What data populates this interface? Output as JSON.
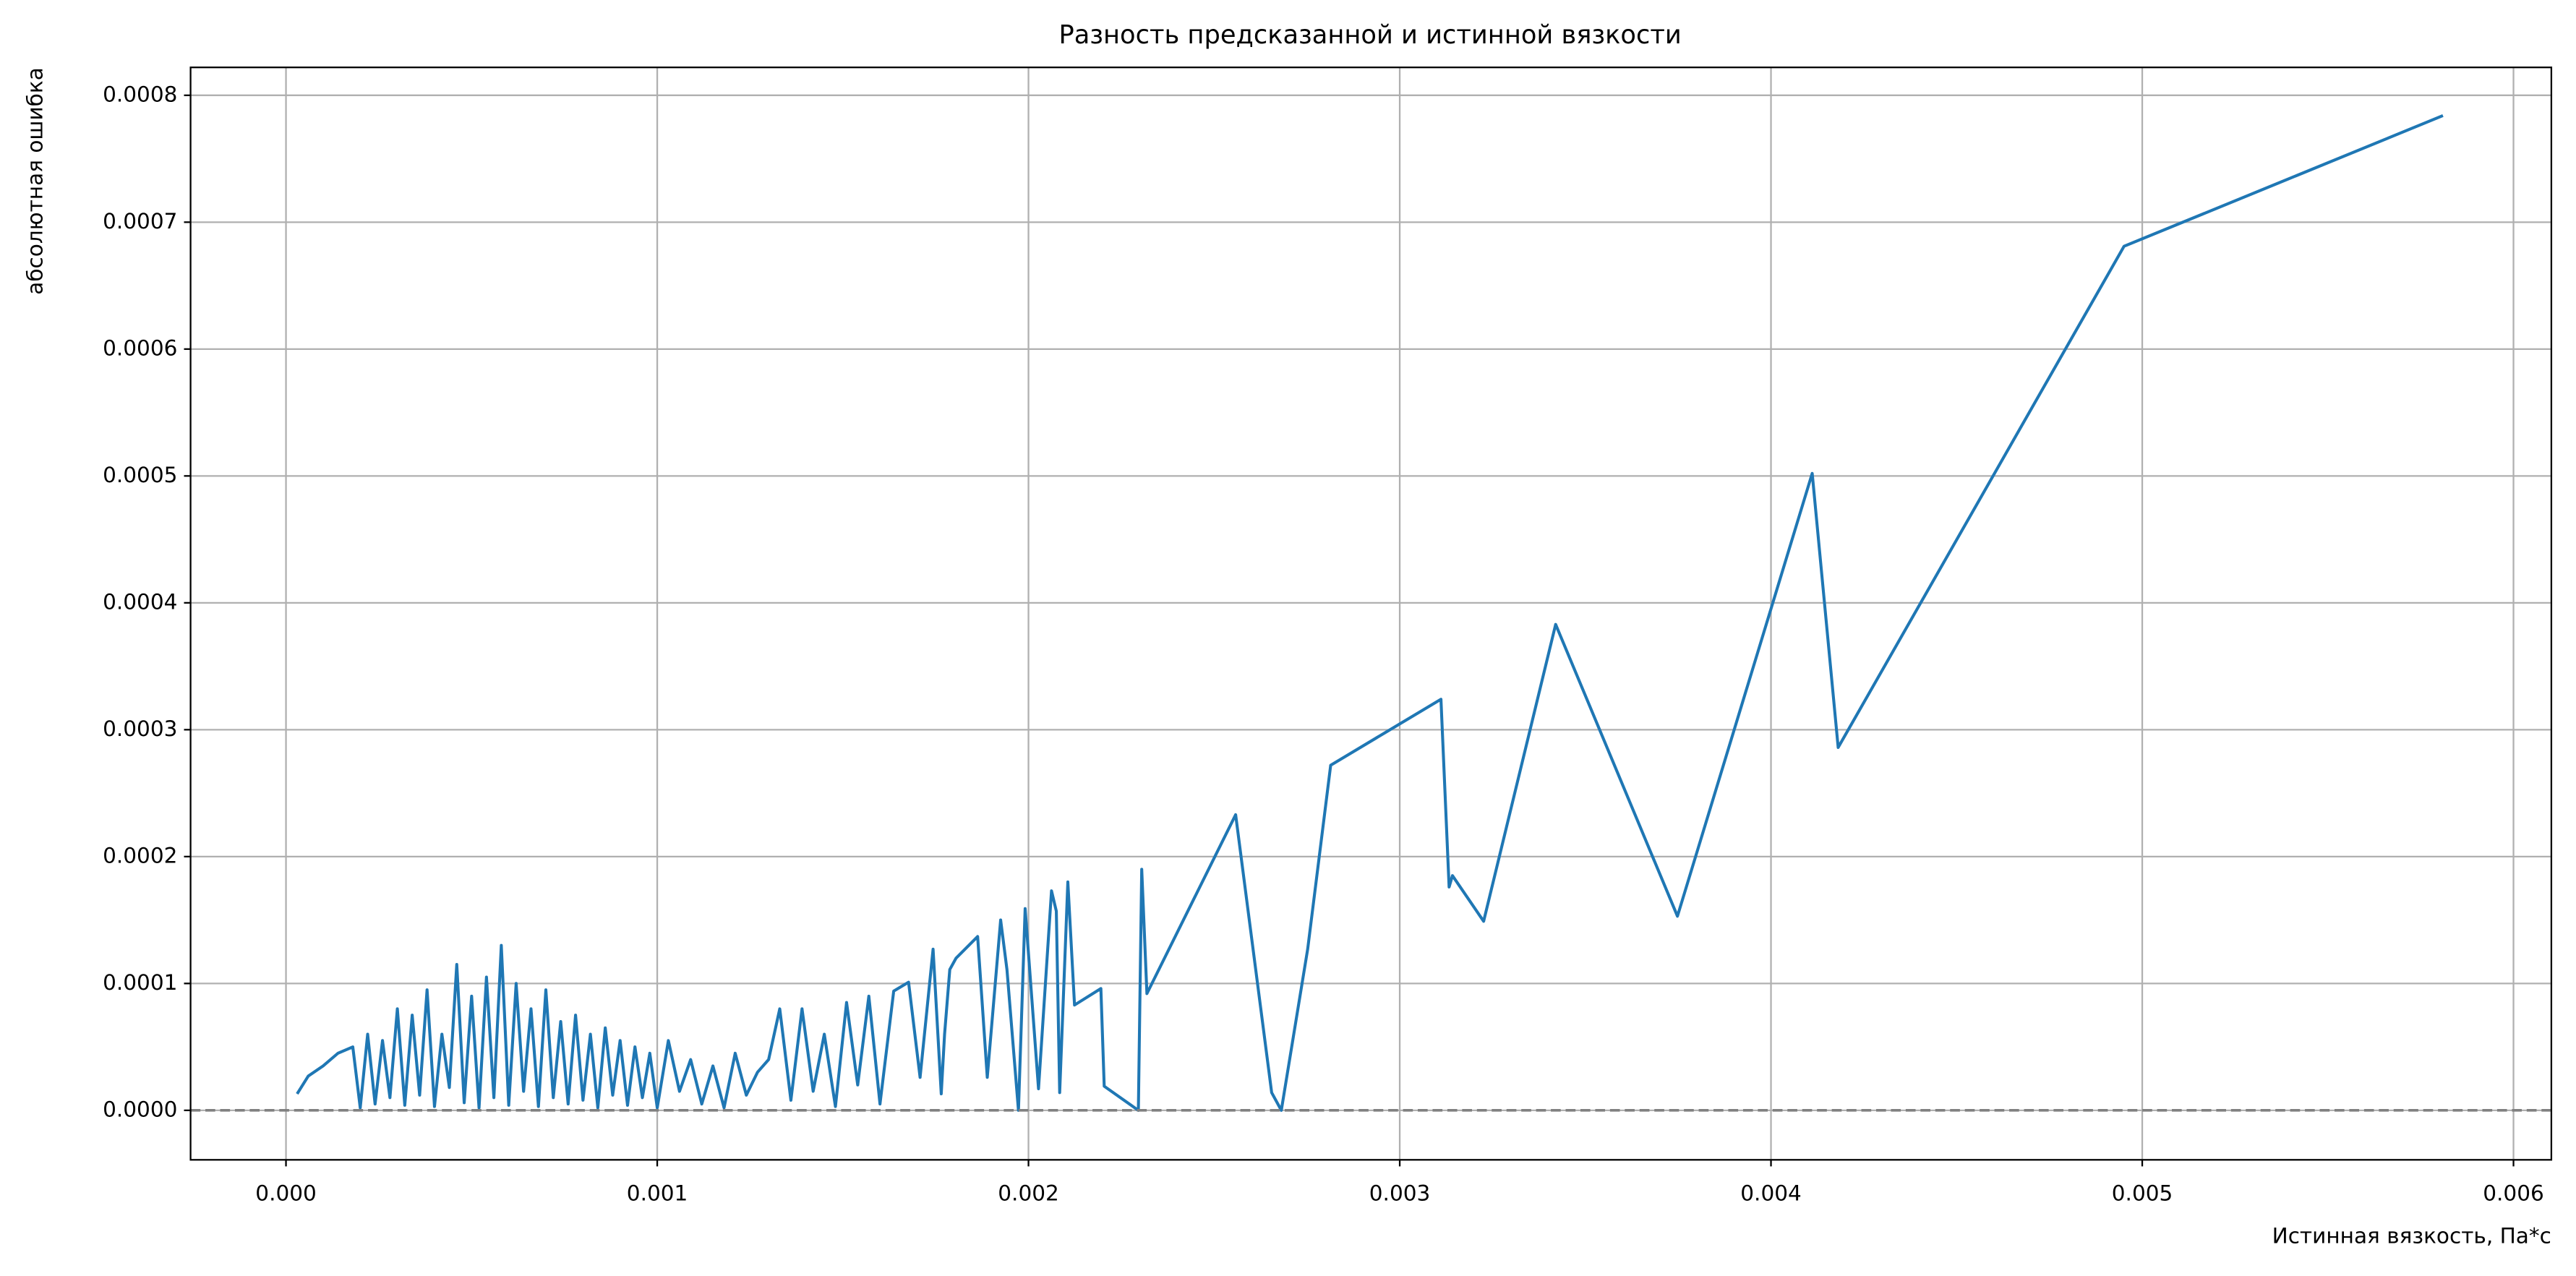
{
  "chart_data": {
    "type": "line",
    "title": "Разность предсказанной и истинной вязкости",
    "xlabel": "Истинная вязкость, Па*с",
    "ylabel": "абсолютная ошибка",
    "grid": true,
    "xlim": [
      -0.000257,
      0.006102
    ],
    "ylim": [
      -3.9e-05,
      0.000822
    ],
    "xticks": [
      {
        "value": 0,
        "label": "0.000"
      },
      {
        "value": 0.001,
        "label": "0.001"
      },
      {
        "value": 0.002,
        "label": "0.002"
      },
      {
        "value": 0.003,
        "label": "0.003"
      },
      {
        "value": 0.004,
        "label": "0.004"
      },
      {
        "value": 0.005,
        "label": "0.005"
      },
      {
        "value": 0.006,
        "label": "0.006"
      }
    ],
    "yticks": [
      {
        "value": 0,
        "label": "0.0000"
      },
      {
        "value": 0.0001,
        "label": "0.0001"
      },
      {
        "value": 0.0002,
        "label": "0.0002"
      },
      {
        "value": 0.0003,
        "label": "0.0003"
      },
      {
        "value": 0.0004,
        "label": "0.0004"
      },
      {
        "value": 0.0005,
        "label": "0.0005"
      },
      {
        "value": 0.0006,
        "label": "0.0006"
      },
      {
        "value": 0.0007,
        "label": "0.0007"
      },
      {
        "value": 0.0008,
        "label": "0.0008"
      }
    ],
    "hline": 0,
    "hline_color": "#808080",
    "x": [
      3e-05,
      6e-05,
      0.0001,
      0.00014,
      0.00018,
      0.0002,
      0.00022,
      0.00024,
      0.00026,
      0.00028,
      0.0003,
      0.00032,
      0.00034,
      0.00036,
      0.00038,
      0.0004,
      0.00042,
      0.00044,
      0.00046,
      0.00048,
      0.0005,
      0.00052,
      0.00054,
      0.00056,
      0.00058,
      0.0006,
      0.00062,
      0.00064,
      0.00066,
      0.00068,
      0.0007,
      0.00072,
      0.00074,
      0.00076,
      0.00078,
      0.0008,
      0.00082,
      0.00084,
      0.00086,
      0.00088,
      0.0009,
      0.00092,
      0.00094,
      0.00096,
      0.00098,
      0.001,
      0.00103,
      0.00106,
      0.00109,
      0.00112,
      0.00115,
      0.00118,
      0.00121,
      0.00124,
      0.00127,
      0.0013,
      0.00133,
      0.00136,
      0.00139,
      0.00142,
      0.00145,
      0.00148,
      0.00151,
      0.00154,
      0.00157,
      0.0016,
      0.001637,
      0.001677,
      0.001708,
      0.001743,
      0.001765,
      0.001774,
      0.001788,
      0.001805,
      0.001863,
      0.001889,
      0.001925,
      0.001942,
      0.001973,
      0.001991,
      0.002027,
      0.002062,
      0.002075,
      0.002084,
      0.002106,
      0.002124,
      0.002195,
      0.002204,
      0.002296,
      0.002305,
      0.002319,
      0.002558,
      0.002655,
      0.002681,
      0.002752,
      0.002814,
      0.003111,
      0.003133,
      0.003142,
      0.003226,
      0.00342,
      0.003748,
      0.004111,
      0.004181,
      0.004951,
      0.00581
    ],
    "series": [
      {
        "color": "#1f77b4",
        "values": [
          1.3e-05,
          2.7e-05,
          3.5e-05,
          4.5e-05,
          5e-05,
          2e-06,
          6e-05,
          5e-06,
          5.5e-05,
          1e-05,
          8e-05,
          4e-06,
          7.5e-05,
          1.2e-05,
          9.5e-05,
          3e-06,
          6e-05,
          1.8e-05,
          0.000115,
          6e-06,
          9e-05,
          2e-06,
          0.000105,
          1e-05,
          0.00013,
          4e-06,
          0.0001,
          1.5e-05,
          8e-05,
          3e-06,
          9.5e-05,
          1e-05,
          7e-05,
          5e-06,
          7.5e-05,
          8e-06,
          6e-05,
          2e-06,
          6.5e-05,
          1.2e-05,
          5.5e-05,
          4e-06,
          5e-05,
          1e-05,
          4.5e-05,
          2e-06,
          5.5e-05,
          1.5e-05,
          4e-05,
          5e-06,
          3.5e-05,
          2e-06,
          4.5e-05,
          1.2e-05,
          3e-05,
          4e-05,
          8e-05,
          8e-06,
          8e-05,
          1.5e-05,
          6e-05,
          3e-06,
          8.5e-05,
          2e-05,
          9e-05,
          5e-06,
          9.4e-05,
          0.000101,
          2.6e-05,
          0.000127,
          1.3e-05,
          6e-05,
          0.000111,
          0.00012,
          0.000137,
          2.6e-05,
          0.00015,
          0.000111,
          0,
          0.000159,
          1.7e-05,
          0.000173,
          0.000157,
          1.4e-05,
          0.00018,
          8.3e-05,
          9.6e-05,
          1.9e-05,
          0,
          0.00019,
          9.2e-05,
          0.000233,
          1.4e-05,
          0,
          0.000127,
          0.000272,
          0.000324,
          0.000176,
          0.000185,
          0.000149,
          0.000383,
          0.000153,
          0.000502,
          0.000286,
          0.000681,
          0.000784
        ]
      }
    ]
  }
}
